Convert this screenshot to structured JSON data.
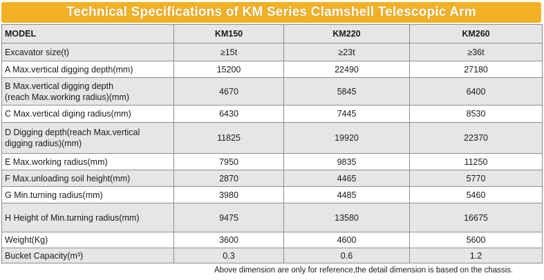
{
  "title": "Technical Specifications of KM Series Clamshell Telescopic Arm",
  "header": {
    "label": "MODEL",
    "models": [
      "KM150",
      "KM220",
      "KM260"
    ]
  },
  "rows": [
    {
      "label": "Excavator size(t)",
      "values": [
        "≥15t",
        "≥23t",
        "≥36t"
      ]
    },
    {
      "label": "A Max.vertical digging depth(mm)",
      "values": [
        "15200",
        "22490",
        "27180"
      ]
    },
    {
      "label": "B Max.vertical digging depth\n(reach Max.working radius)(mm)",
      "values": [
        "4670",
        "5845",
        "6400"
      ]
    },
    {
      "label": "C Max.vertical diging radius(mm)",
      "values": [
        "6430",
        "7445",
        "8530"
      ]
    },
    {
      "label": "D Digging depth(reach Max.vertical\ndigging radius)(mm)",
      "values": [
        "11825",
        "19920",
        "22370"
      ]
    },
    {
      "label": "E Max.working radius(mm)",
      "values": [
        "7950",
        "9835",
        "11250"
      ]
    },
    {
      "label": "F Max.unloading soil height(mm)",
      "values": [
        "2870",
        "4465",
        "5770"
      ]
    },
    {
      "label": "G Min.turning radius(mm)",
      "values": [
        "3980",
        "4485",
        "5460"
      ]
    },
    {
      "label": "H Height of Min.turning radius(mm)",
      "values": [
        "9475",
        "13580",
        "16675"
      ]
    },
    {
      "label": "Weight(Kg)",
      "values": [
        "3600",
        "4600",
        "5600"
      ]
    },
    {
      "label": "Bucket  Capacity(m³)",
      "values": [
        "0.3",
        "0.6",
        "1.2"
      ]
    }
  ],
  "footnote": "Above dimension are only for reference,the detail dimension is based on the chassis.",
  "colors": {
    "title_bar": "#f2b124",
    "title_text": "#ffffff",
    "row_shade": "#e6e6e6",
    "border": "#8c8c8c"
  }
}
